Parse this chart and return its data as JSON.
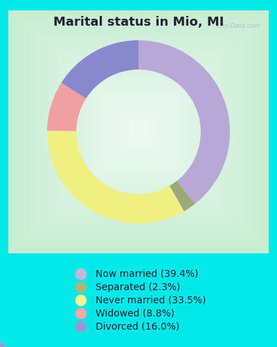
{
  "title": "Marital status in Mio, MI",
  "slices": [
    39.4,
    2.3,
    33.5,
    8.8,
    16.0
  ],
  "colors": [
    "#b8a8d8",
    "#9aaa78",
    "#f0f080",
    "#f0a0a0",
    "#8888cc"
  ],
  "labels": [
    "Now married (39.4%)",
    "Separated (2.3%)",
    "Never married (33.5%)",
    "Widowed (8.8%)",
    "Divorced (16.0%)"
  ],
  "legend_colors": [
    "#c8b4e0",
    "#a8b878",
    "#f4f490",
    "#f4a8a8",
    "#9898d4"
  ],
  "bg_outer": "#00e8e8",
  "title_color": "#222233",
  "title_fontsize": 13,
  "watermark": "City-Data.com",
  "donut_width": 0.32,
  "start_angle": 90,
  "legend_fontsize": 10
}
